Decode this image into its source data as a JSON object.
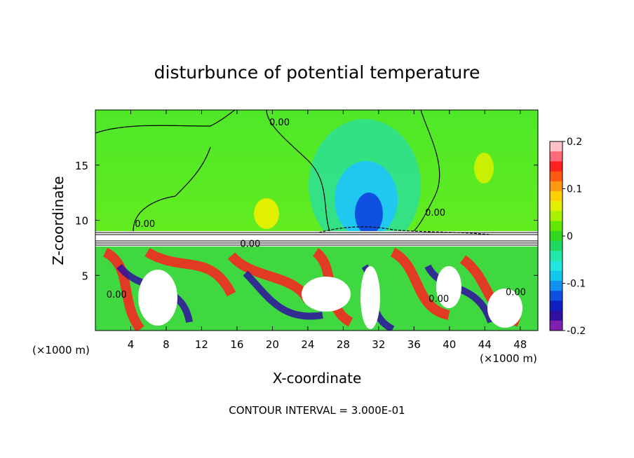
{
  "chart_data": {
    "type": "heatmap",
    "title": "disturbunce of potential temperature",
    "xlabel": "X-coordinate",
    "ylabel": "Z-coordinate",
    "x_unit_left": "(×1000 m)",
    "x_unit_right": "(×1000 m)",
    "xlim": [
      0,
      50
    ],
    "ylim": [
      0,
      20
    ],
    "x_ticks": [
      4,
      8,
      12,
      16,
      20,
      24,
      28,
      32,
      36,
      40,
      44,
      48
    ],
    "y_ticks": [
      5,
      10,
      15
    ],
    "colorbar": {
      "ticks": [
        0.2,
        0.1,
        0,
        -0.1,
        -0.2
      ],
      "tick_labels": [
        "0.2",
        "0.1",
        "0",
        "-0.1",
        "-0.2"
      ],
      "colors": [
        "#ffc0c8",
        "#ff6a78",
        "#ff2020",
        "#ff5a10",
        "#ff9a10",
        "#ffd000",
        "#e0f000",
        "#a8f000",
        "#60e800",
        "#30d820",
        "#20d860",
        "#20e8a8",
        "#20e8e0",
        "#10c8f0",
        "#1090f0",
        "#1050e0",
        "#1020c0",
        "#3010a0",
        "#8020b0"
      ]
    },
    "contour_labels": [
      {
        "text": "0.00",
        "x": 20.8,
        "z": 18.6
      },
      {
        "text": "0.00",
        "x": 5.6,
        "z": 9.4
      },
      {
        "text": "0.00",
        "x": 38.4,
        "z": 10.4
      },
      {
        "text": "0.00",
        "x": 17.5,
        "z": 7.6
      },
      {
        "text": "0.00",
        "x": 2.4,
        "z": 3.0
      },
      {
        "text": "0.00",
        "x": 38.8,
        "z": 2.6
      },
      {
        "text": "0.00",
        "x": 47.5,
        "z": 3.2
      }
    ],
    "annotation": "CONTOUR INTERVAL = 3.000E-01"
  }
}
